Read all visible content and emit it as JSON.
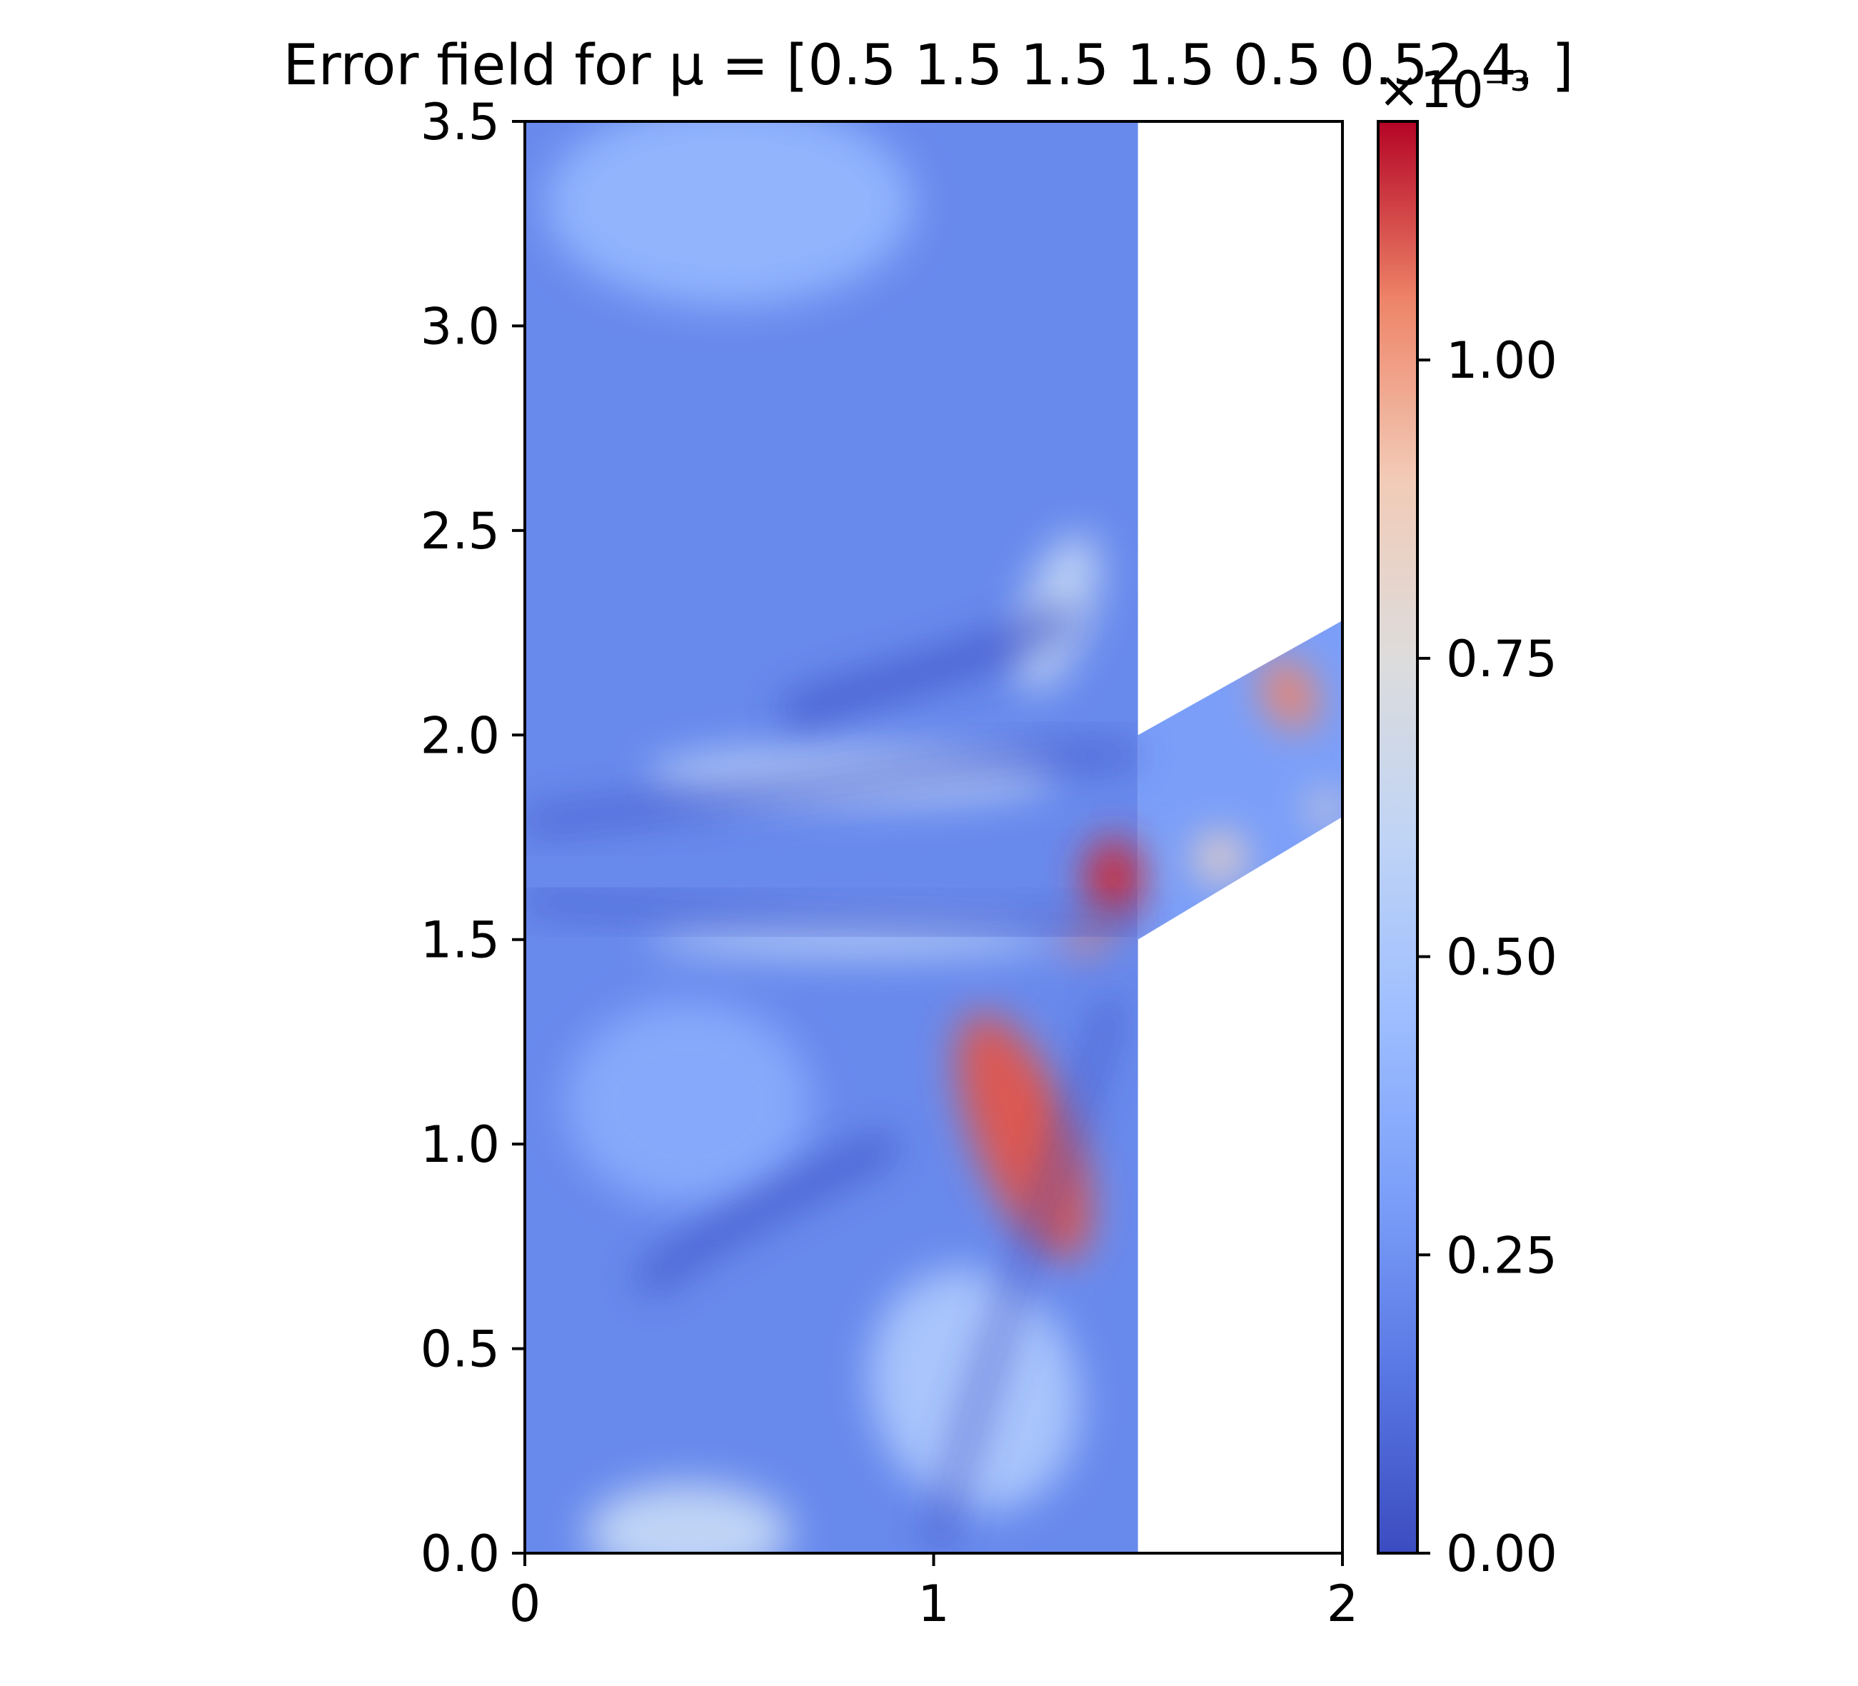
{
  "chart_data": {
    "type": "heatmap",
    "title": "Error field for μ = [0.5  1.5  1.5  1.5  0.5  0.52 4.  ]",
    "xlabel": "",
    "ylabel": "",
    "xlim": [
      0,
      2
    ],
    "ylim": [
      0,
      3.5
    ],
    "x_ticks": [
      0,
      1,
      2
    ],
    "x_tick_labels": [
      "0",
      "1",
      "2"
    ],
    "y_ticks": [
      0,
      0.5,
      1.0,
      1.5,
      2.0,
      2.5,
      3.0,
      3.5
    ],
    "y_tick_labels": [
      "0.0",
      "0.5",
      "1.0",
      "1.5",
      "2.0",
      "2.5",
      "3.0",
      "3.5"
    ],
    "colormap": "coolwarm",
    "colorbar": {
      "min": 0,
      "max": 1.2,
      "ticks": [
        0,
        0.25,
        0.5,
        0.75,
        1.0
      ],
      "tick_labels": [
        "0.00",
        "0.25",
        "0.50",
        "0.75",
        "1.00"
      ],
      "offset_label": "×10⁻³"
    },
    "domain": {
      "rectangle": {
        "x": [
          0,
          1.5
        ],
        "y": [
          0,
          3.5
        ]
      },
      "arm": [
        [
          1.5,
          1.5
        ],
        [
          2.0,
          1.8
        ],
        [
          2.0,
          2.28
        ],
        [
          1.5,
          2.0
        ]
      ]
    },
    "hotspots": [
      {
        "x": 1.22,
        "y": 1.02,
        "rx": 0.12,
        "ry": 0.32,
        "value": 1.1,
        "angle": -22
      },
      {
        "x": 1.44,
        "y": 1.65,
        "rx": 0.07,
        "ry": 0.1,
        "value": 1.15,
        "angle": 0
      },
      {
        "x": 1.37,
        "y": 1.5,
        "rx": 0.06,
        "ry": 0.025,
        "value": 1.05,
        "angle": 0
      },
      {
        "x": 1.87,
        "y": 2.1,
        "rx": 0.06,
        "ry": 0.09,
        "value": 1.05,
        "angle": -25
      },
      {
        "x": 1.7,
        "y": 1.7,
        "rx": 0.06,
        "ry": 0.06,
        "value": 0.85,
        "angle": 0
      },
      {
        "x": 1.96,
        "y": 1.82,
        "rx": 0.04,
        "ry": 0.04,
        "value": 0.8,
        "angle": 0
      },
      {
        "x": 1.3,
        "y": 2.3,
        "rx": 0.08,
        "ry": 0.2,
        "value": 0.6,
        "angle": 20
      },
      {
        "x": 0.8,
        "y": 1.9,
        "rx": 0.5,
        "ry": 0.07,
        "value": 0.55,
        "angle": 0
      },
      {
        "x": 0.8,
        "y": 1.5,
        "rx": 0.5,
        "ry": 0.04,
        "value": 0.55,
        "angle": 0
      },
      {
        "x": 0.4,
        "y": 0.05,
        "rx": 0.25,
        "ry": 0.12,
        "value": 0.6,
        "angle": 0
      },
      {
        "x": 0.5,
        "y": 3.3,
        "rx": 0.45,
        "ry": 0.25,
        "value": 0.4,
        "angle": 0
      },
      {
        "x": 0.4,
        "y": 1.1,
        "rx": 0.3,
        "ry": 0.25,
        "value": 0.35,
        "angle": 0
      },
      {
        "x": 1.1,
        "y": 0.4,
        "rx": 0.25,
        "ry": 0.3,
        "value": 0.5,
        "angle": -20
      }
    ]
  }
}
